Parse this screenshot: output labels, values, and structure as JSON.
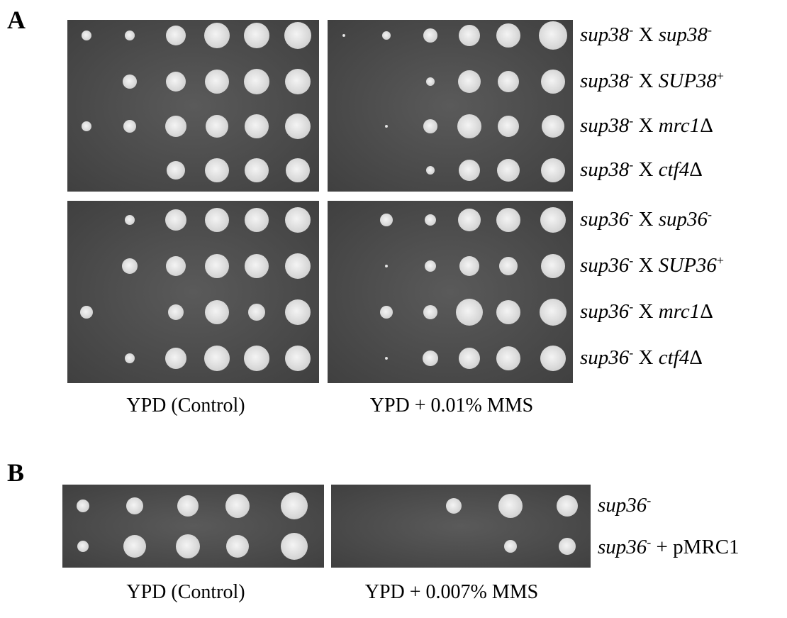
{
  "panel_a": {
    "letter": "A",
    "rows": [
      [
        {
          "text": "sup38",
          "style": "italic"
        },
        {
          "text": "-",
          "style": "sup"
        },
        {
          "text": " X ",
          "style": "normal"
        },
        {
          "text": "sup38",
          "style": "italic"
        },
        {
          "text": "-",
          "style": "sup"
        }
      ],
      [
        {
          "text": "sup38",
          "style": "italic"
        },
        {
          "text": "-",
          "style": "sup"
        },
        {
          "text": " X ",
          "style": "normal"
        },
        {
          "text": "SUP38",
          "style": "italic"
        },
        {
          "text": "+",
          "style": "sup"
        }
      ],
      [
        {
          "text": "sup38",
          "style": "italic"
        },
        {
          "text": "-",
          "style": "sup"
        },
        {
          "text": " X ",
          "style": "normal"
        },
        {
          "text": "mrc1",
          "style": "italic"
        },
        {
          "text": "Δ",
          "style": "normal"
        }
      ],
      [
        {
          "text": "sup38",
          "style": "italic"
        },
        {
          "text": "-",
          "style": "sup"
        },
        {
          "text": " X ",
          "style": "normal"
        },
        {
          "text": "ctf4",
          "style": "italic"
        },
        {
          "text": "Δ",
          "style": "normal"
        }
      ],
      [
        {
          "text": "sup36",
          "style": "italic"
        },
        {
          "text": "-",
          "style": "sup"
        },
        {
          "text": " X ",
          "style": "normal"
        },
        {
          "text": "sup36",
          "style": "italic"
        },
        {
          "text": "-",
          "style": "sup"
        }
      ],
      [
        {
          "text": "sup36",
          "style": "italic"
        },
        {
          "text": "-",
          "style": "sup"
        },
        {
          "text": " X ",
          "style": "normal"
        },
        {
          "text": "SUP36",
          "style": "italic"
        },
        {
          "text": "+",
          "style": "sup"
        }
      ],
      [
        {
          "text": "sup36",
          "style": "italic"
        },
        {
          "text": "-",
          "style": "sup"
        },
        {
          "text": " X ",
          "style": "normal"
        },
        {
          "text": "mrc1",
          "style": "italic"
        },
        {
          "text": "Δ",
          "style": "normal"
        }
      ],
      [
        {
          "text": "sup36",
          "style": "italic"
        },
        {
          "text": "-",
          "style": "sup"
        },
        {
          "text": " X ",
          "style": "normal"
        },
        {
          "text": "ctf4",
          "style": "italic"
        },
        {
          "text": "Δ",
          "style": "normal"
        }
      ]
    ],
    "conditions": [
      "YPD (Control)",
      "YPD + 0.01% MMS"
    ]
  },
  "panel_b": {
    "letter": "B",
    "rows": [
      [
        {
          "text": "sup36",
          "style": "italic"
        },
        {
          "text": "-",
          "style": "sup"
        }
      ],
      [
        {
          "text": "sup36",
          "style": "italic"
        },
        {
          "text": "-",
          "style": "sup"
        },
        {
          "text": " + pMRC1",
          "style": "normal"
        }
      ]
    ],
    "conditions": [
      "YPD (Control)",
      "YPD + 0.007% MMS"
    ]
  }
}
